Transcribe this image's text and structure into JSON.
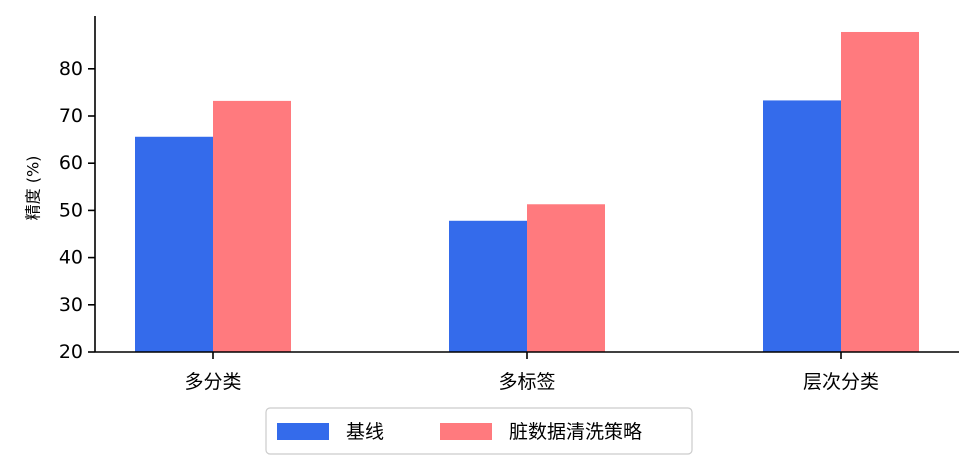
{
  "chart_data": {
    "type": "bar",
    "categories": [
      "多分类",
      "多标签",
      "层次分类"
    ],
    "series": [
      {
        "name": "基线",
        "values": [
          65.6,
          47.8,
          73.3
        ],
        "color": "#346beb"
      },
      {
        "name": "脏数据清洗策略",
        "values": [
          73.2,
          51.3,
          87.8
        ],
        "color": "#ff7a7e"
      }
    ],
    "title": "",
    "xlabel": "",
    "ylabel": "精度 (%)",
    "ylim": [
      20,
      90
    ],
    "yticks": [
      20,
      30,
      40,
      50,
      60,
      70,
      80
    ],
    "grid": false,
    "legend_position": "bottom-center"
  }
}
